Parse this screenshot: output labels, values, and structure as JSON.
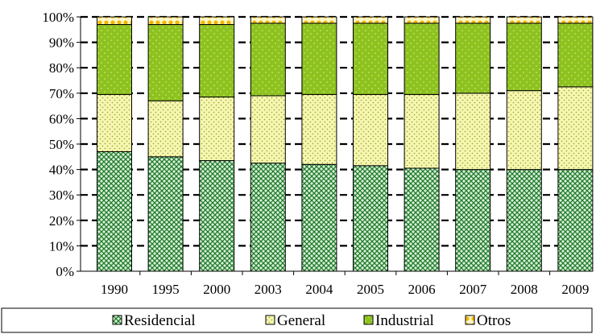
{
  "chart_data": {
    "type": "bar",
    "stacked": "percent",
    "categories": [
      "1990",
      "1995",
      "2000",
      "2003",
      "2004",
      "2005",
      "2006",
      "2007",
      "2008",
      "2009"
    ],
    "series": [
      {
        "name": "Residencial",
        "color": "#2e8b2e",
        "pattern": "crosshatch",
        "values": [
          47,
          45,
          43.5,
          42.5,
          42,
          41.5,
          40.5,
          40,
          40,
          40
        ]
      },
      {
        "name": "General",
        "color": "#f3f5a8",
        "pattern": "dots",
        "values": [
          22.5,
          22,
          25,
          26.5,
          27.5,
          28,
          29,
          30,
          31,
          32.5
        ]
      },
      {
        "name": "Industrial",
        "color": "#8dc21f",
        "pattern": "dots",
        "values": [
          27.5,
          30,
          28.5,
          28.5,
          28,
          28,
          28,
          27.5,
          26.5,
          25
        ]
      },
      {
        "name": "Otros",
        "color": "#f4c430",
        "pattern": "flowers",
        "values": [
          3,
          3,
          3,
          2.5,
          2.5,
          2.5,
          2.5,
          2.5,
          2.5,
          2.5
        ]
      }
    ],
    "ylim": [
      0,
      100
    ],
    "yticks": [
      "0%",
      "10%",
      "20%",
      "30%",
      "40%",
      "50%",
      "60%",
      "70%",
      "80%",
      "90%",
      "100%"
    ],
    "grid": true,
    "legend": "bottom"
  }
}
